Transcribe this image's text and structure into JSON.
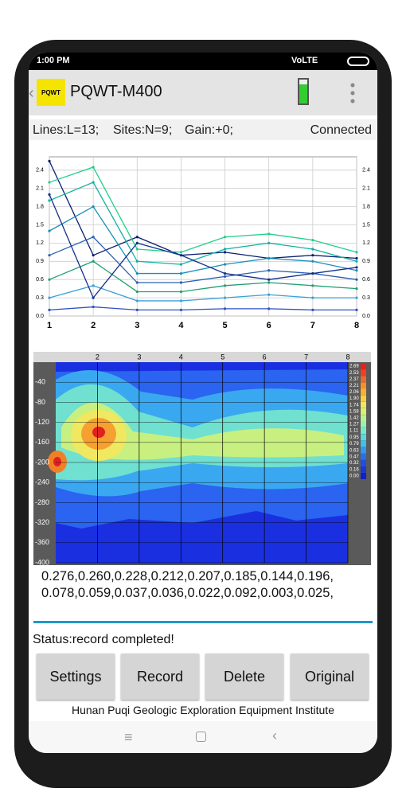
{
  "status_bar": {
    "time": "1:00 PM",
    "network": "VoLTE"
  },
  "app_bar": {
    "logo": "PQWT",
    "title": "PQWT-M400"
  },
  "info": {
    "lines": "Lines:L=13;",
    "sites": "Sites:N=9;",
    "gain": "Gain:+0;",
    "connection": "Connected"
  },
  "chart_data": [
    {
      "type": "line",
      "x": [
        1,
        2,
        3,
        4,
        5,
        6,
        7,
        8
      ],
      "xlim": [
        1,
        8
      ],
      "xticks": [
        1,
        2,
        3,
        4,
        5,
        6,
        7,
        8
      ],
      "ylim": [
        0,
        2.62
      ],
      "yticks": [
        {
          "value": 0,
          "label": "0.0"
        },
        0.3,
        0.6,
        0.9,
        1.2,
        1.5,
        1.8,
        2.1,
        2.4
      ],
      "grid": true,
      "series": [
        {
          "color": "#0a1f6e",
          "values": [
            2.55,
            1.0,
            1.3,
            1.0,
            1.05,
            0.95,
            1.0,
            0.95
          ]
        },
        {
          "color": "#1fd08a",
          "values": [
            2.2,
            2.45,
            1.1,
            1.05,
            1.3,
            1.35,
            1.25,
            1.05
          ]
        },
        {
          "color": "#10b0a0",
          "values": [
            1.9,
            2.2,
            0.9,
            0.85,
            1.1,
            1.2,
            1.1,
            0.9
          ]
        },
        {
          "color": "#1890b8",
          "values": [
            1.4,
            1.8,
            0.7,
            0.7,
            0.85,
            0.95,
            0.9,
            0.75
          ]
        },
        {
          "color": "#2a60b0",
          "values": [
            1.0,
            1.3,
            0.55,
            0.55,
            0.65,
            0.75,
            0.7,
            0.6
          ]
        },
        {
          "color": "#20a070",
          "values": [
            0.6,
            0.9,
            0.4,
            0.4,
            0.5,
            0.55,
            0.5,
            0.45
          ]
        },
        {
          "color": "#3aa0d8",
          "values": [
            0.3,
            0.5,
            0.25,
            0.25,
            0.3,
            0.35,
            0.3,
            0.3
          ]
        },
        {
          "color": "#14308a",
          "values": [
            2.0,
            0.3,
            1.2,
            1.0,
            0.7,
            0.6,
            0.7,
            0.8
          ]
        },
        {
          "color": "#3050c0",
          "values": [
            0.1,
            0.15,
            0.1,
            0.1,
            0.12,
            0.12,
            0.1,
            0.1
          ]
        }
      ]
    },
    {
      "type": "contour",
      "xlim": [
        1,
        8
      ],
      "xticks": [
        2,
        3,
        4,
        5,
        6,
        7,
        8
      ],
      "ylim": [
        -400,
        0
      ],
      "yticks": [
        -40,
        -80,
        -120,
        -160,
        -200,
        -240,
        -280,
        -320,
        -360,
        -400
      ],
      "colorbar": {
        "levels": [
          {
            "value": 2.69,
            "label": "2.69"
          },
          {
            "value": 2.53,
            "label": "2.53"
          },
          {
            "value": 2.37,
            "label": "2.37"
          },
          {
            "value": 2.21,
            "label": "2.21"
          },
          {
            "value": 2.06,
            "label": "2.06"
          },
          {
            "value": 1.9,
            "label": "1.90"
          },
          {
            "value": 1.74,
            "label": "1.74"
          },
          {
            "value": 1.58,
            "label": "1.58"
          },
          {
            "value": 1.42,
            "label": "1.42"
          },
          {
            "value": 1.27,
            "label": "1.27"
          },
          {
            "value": 1.11,
            "label": "1.11"
          },
          {
            "value": 0.95,
            "label": "0.95"
          },
          {
            "value": 0.79,
            "label": "0.79"
          },
          {
            "value": 0.63,
            "label": "0.63"
          },
          {
            "value": 0.47,
            "label": "0.47"
          },
          {
            "value": 0.32,
            "label": "0.32"
          },
          {
            "value": 0.16,
            "label": "0.16"
          },
          {
            "value": 0,
            "label": "0.00"
          }
        ],
        "colors": [
          "#e8201c",
          "#f04020",
          "#f06a24",
          "#f5902a",
          "#f8b030",
          "#f8d040",
          "#f0e860",
          "#d8f070",
          "#b8f090",
          "#98f0b0",
          "#78e8c8",
          "#58d8e0",
          "#40c0f0",
          "#3098f0",
          "#2870e8",
          "#2050e0",
          "#1838d8",
          "#1020c8"
        ]
      }
    }
  ],
  "readings": [
    "0.276,0.260,0.228,0.212,0.207,0.185,0.144,0.196,",
    "0.078,0.059,0.037,0.036,0.022,0.092,0.003,0.025,"
  ],
  "status": "Status:record completed!",
  "buttons": [
    "Settings",
    "Record",
    "Delete",
    "Original"
  ],
  "footer": "Hunan Puqi Geologic Exploration Equipment Institute"
}
